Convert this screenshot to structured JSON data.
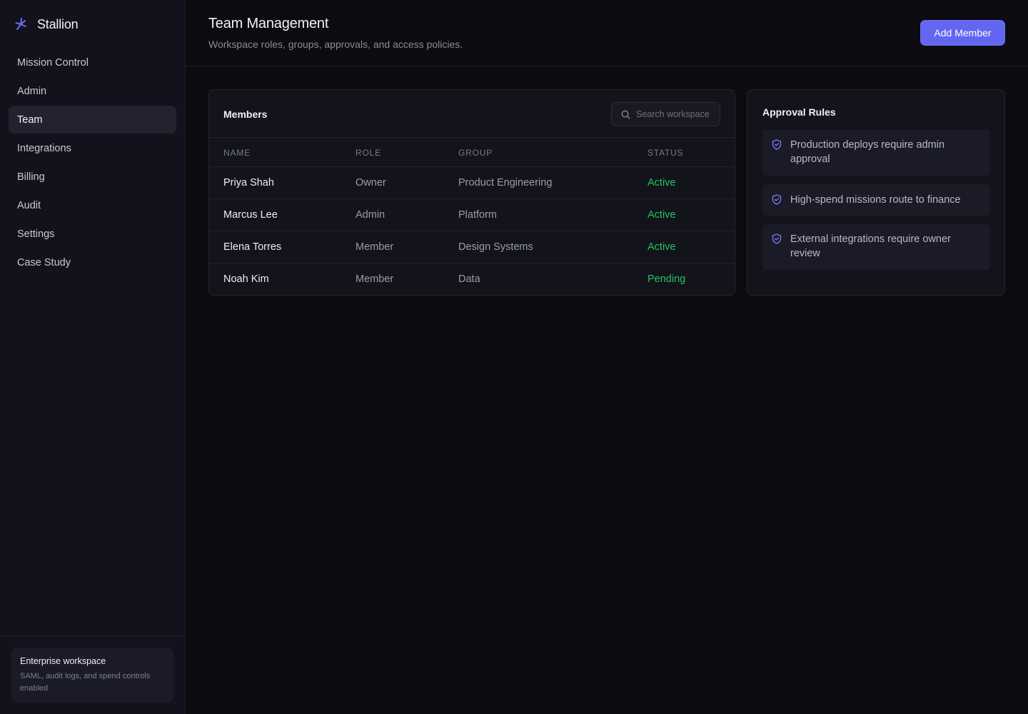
{
  "app": {
    "brand": "Stallion",
    "accent_color": "#6366f1",
    "brand_icon": "asterisk-star-icon"
  },
  "sidebar": {
    "items": [
      {
        "label": "Mission Control",
        "active": false
      },
      {
        "label": "Admin",
        "active": false
      },
      {
        "label": "Team",
        "active": true
      },
      {
        "label": "Integrations",
        "active": false
      },
      {
        "label": "Billing",
        "active": false
      },
      {
        "label": "Audit",
        "active": false
      },
      {
        "label": "Settings",
        "active": false
      },
      {
        "label": "Case Study",
        "active": false
      }
    ],
    "footer": {
      "title": "Enterprise workspace",
      "description": "SAML, audit logs, and spend controls enabled"
    }
  },
  "header": {
    "title": "Team Management",
    "subtitle": "Workspace roles, groups, approvals, and access policies.",
    "primary_button": "Add Member"
  },
  "members": {
    "title": "Members",
    "search": {
      "placeholder": "Search workspace",
      "value": ""
    },
    "columns": [
      "Name",
      "Role",
      "Group",
      "Status"
    ],
    "rows": [
      {
        "name": "Priya Shah",
        "role": "Owner",
        "group": "Product Engineering",
        "status": "Active"
      },
      {
        "name": "Marcus Lee",
        "role": "Admin",
        "group": "Platform",
        "status": "Active"
      },
      {
        "name": "Elena Torres",
        "role": "Member",
        "group": "Design Systems",
        "status": "Active"
      },
      {
        "name": "Noah Kim",
        "role": "Member",
        "group": "Data",
        "status": "Pending"
      }
    ],
    "status_color": "#22c55e"
  },
  "approval_rules": {
    "title": "Approval Rules",
    "icon": "shield-check-icon",
    "rules": [
      "Production deploys require admin approval",
      "High-spend missions route to finance",
      "External integrations require owner review"
    ]
  }
}
